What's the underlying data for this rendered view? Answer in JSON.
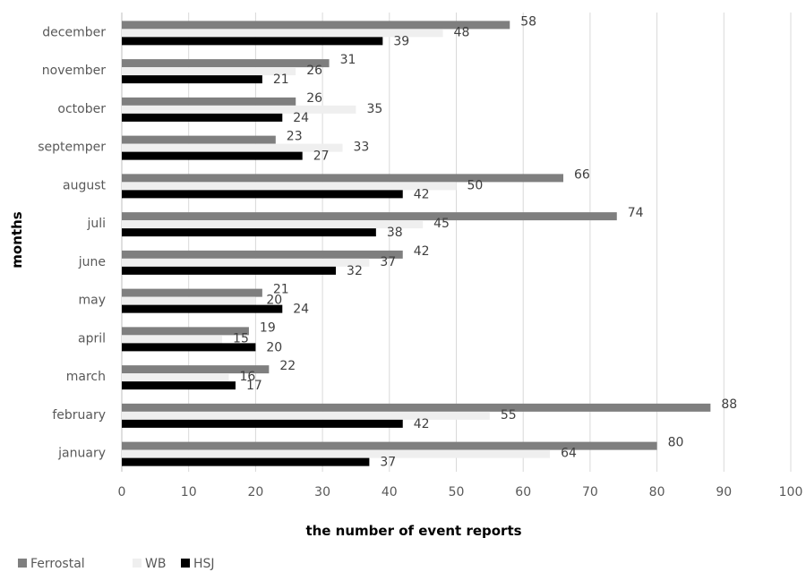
{
  "chart_data": {
    "type": "bar",
    "orientation": "horizontal",
    "xlabel": "the number of event reports",
    "ylabel": "months",
    "xlim": [
      0,
      100
    ],
    "x_ticks": [
      "0",
      "10",
      "20",
      "30",
      "40",
      "50",
      "60",
      "70",
      "80",
      "90",
      "100"
    ],
    "grid": "vertical",
    "legend_position": "bottom-left",
    "categories": [
      "january",
      "february",
      "march",
      "april",
      "may",
      "june",
      "juli",
      "august",
      "septemper",
      "october",
      "november",
      "december"
    ],
    "series": [
      {
        "name": "Ferrostal",
        "color": "#7f7f7f",
        "values": [
          80,
          88,
          22,
          19,
          21,
          42,
          74,
          66,
          23,
          26,
          31,
          58
        ]
      },
      {
        "name": "WB",
        "color": "#efefef",
        "values": [
          64,
          55,
          16,
          15,
          20,
          37,
          45,
          50,
          33,
          35,
          26,
          48
        ]
      },
      {
        "name": "HSJ",
        "color": "#000000",
        "values": [
          37,
          42,
          17,
          20,
          24,
          32,
          38,
          42,
          27,
          24,
          21,
          39
        ]
      }
    ]
  }
}
